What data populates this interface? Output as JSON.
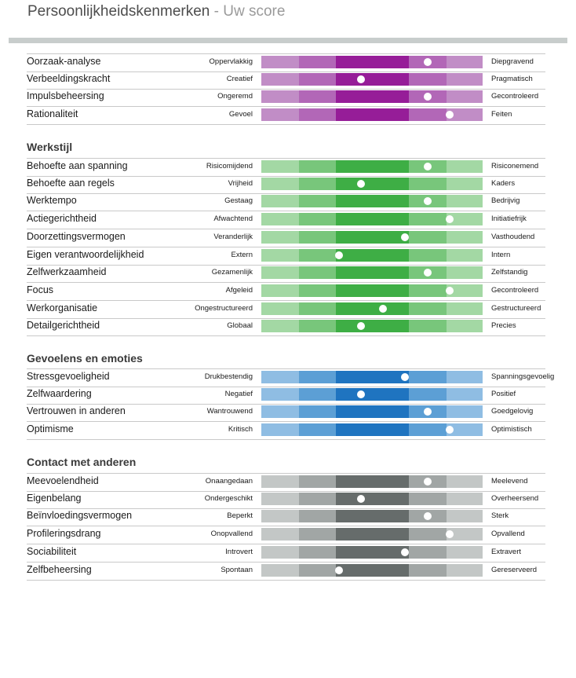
{
  "header": {
    "title_main": "Persoonlijkheidskenmerken",
    "title_sep": " - ",
    "title_sub": "Uw score"
  },
  "sections": [
    {
      "title": "",
      "palette": [
        "#c18dc6",
        "#b267b7",
        "#961d98"
      ],
      "rows": [
        {
          "name": "Oorzaak-analyse",
          "left": "Oppervlakkig",
          "right": "Diepgravend",
          "score": 8
        },
        {
          "name": "Verbeeldingskracht",
          "left": "Creatief",
          "right": "Pragmatisch",
          "score": 5
        },
        {
          "name": "Impulsbeheersing",
          "left": "Ongeremd",
          "right": "Gecontroleerd",
          "score": 8
        },
        {
          "name": "Rationaliteit",
          "left": "Gevoel",
          "right": "Feiten",
          "score": 9
        }
      ]
    },
    {
      "title": "Werkstijl",
      "palette": [
        "#a3d8a4",
        "#78c67b",
        "#3eae45"
      ],
      "rows": [
        {
          "name": "Behoefte aan spanning",
          "left": "Risicomijdend",
          "right": "Risiconemend",
          "score": 8
        },
        {
          "name": "Behoefte aan regels",
          "left": "Vrijheid",
          "right": "Kaders",
          "score": 5
        },
        {
          "name": "Werktempo",
          "left": "Gestaag",
          "right": "Bedrijvig",
          "score": 8
        },
        {
          "name": "Actiegerichtheid",
          "left": "Afwachtend",
          "right": "Initiatiefrijk",
          "score": 9
        },
        {
          "name": "Doorzettingsvermogen",
          "left": "Veranderlijk",
          "right": "Vasthoudend",
          "score": 7
        },
        {
          "name": "Eigen verantwoordelijkheid",
          "left": "Extern",
          "right": "Intern",
          "score": 4
        },
        {
          "name": "Zelfwerkzaamheid",
          "left": "Gezamenlijk",
          "right": "Zelfstandig",
          "score": 8
        },
        {
          "name": "Focus",
          "left": "Afgeleid",
          "right": "Gecontroleerd",
          "score": 9
        },
        {
          "name": "Werkorganisatie",
          "left": "Ongestructureerd",
          "right": "Gestructureerd",
          "score": 6
        },
        {
          "name": "Detailgerichtheid",
          "left": "Globaal",
          "right": "Precies",
          "score": 5
        }
      ]
    },
    {
      "title": "Gevoelens en emoties",
      "palette": [
        "#8fbde3",
        "#5c9fd5",
        "#1f74c0"
      ],
      "rows": [
        {
          "name": "Stressgevoeligheid",
          "left": "Drukbestendig",
          "right": "Spanningsgevoelig",
          "score": 7
        },
        {
          "name": "Zelfwaardering",
          "left": "Negatief",
          "right": "Positief",
          "score": 5
        },
        {
          "name": "Vertrouwen in anderen",
          "left": "Wantrouwend",
          "right": "Goedgelovig",
          "score": 8
        },
        {
          "name": "Optimisme",
          "left": "Kritisch",
          "right": "Optimistisch",
          "score": 9
        }
      ]
    },
    {
      "title": "Contact met anderen",
      "palette": [
        "#c3c7c6",
        "#a1a6a5",
        "#666c6b"
      ],
      "rows": [
        {
          "name": "Meevoelendheid",
          "left": "Onaangedaan",
          "right": "Meelevend",
          "score": 8
        },
        {
          "name": "Eigenbelang",
          "left": "Ondergeschikt",
          "right": "Overheersend",
          "score": 5
        },
        {
          "name": "Beïnvloedingsvermogen",
          "left": "Beperkt",
          "right": "Sterk",
          "score": 8
        },
        {
          "name": "Profileringsdrang",
          "left": "Onopvallend",
          "right": "Opvallend",
          "score": 9
        },
        {
          "name": "Sociabiliteit",
          "left": "Introvert",
          "right": "Extravert",
          "score": 7
        },
        {
          "name": "Zelfbeheersing",
          "left": "Spontaan",
          "right": "Gereserveerd",
          "score": 4
        }
      ]
    }
  ]
}
